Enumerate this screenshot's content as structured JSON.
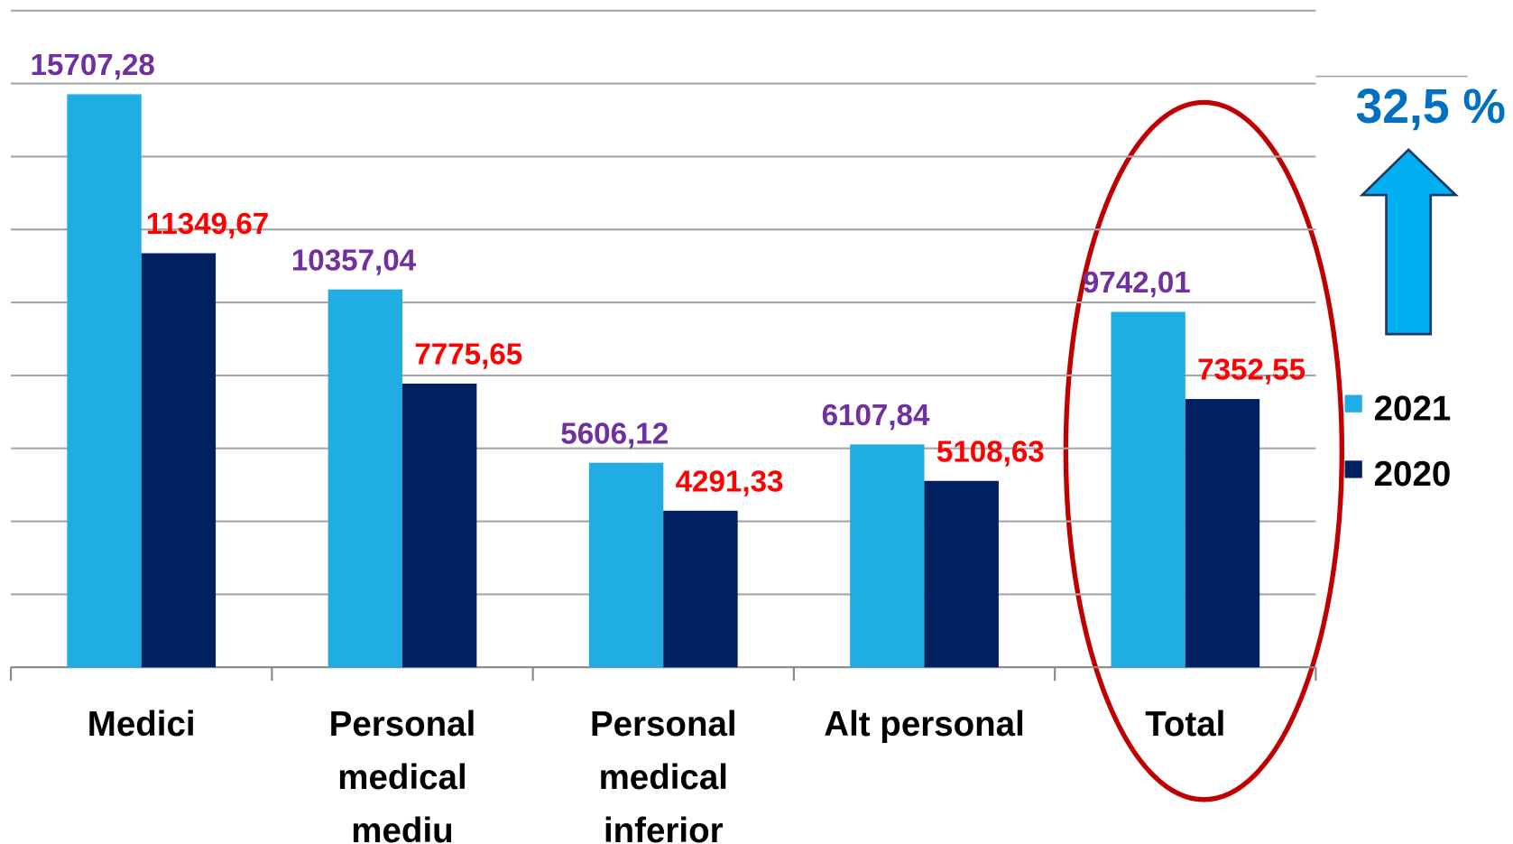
{
  "chart_data": {
    "type": "bar",
    "categories": [
      [
        "Medici"
      ],
      [
        "Personal",
        "medical",
        "mediu"
      ],
      [
        "Personal",
        "medical",
        "inferior"
      ],
      [
        "Alt personal"
      ],
      [
        "Total"
      ]
    ],
    "series": [
      {
        "name": "2021",
        "color": "#1fade3",
        "label_color": "#7030a0",
        "values": [
          15707.28,
          10357.04,
          5606.12,
          6107.84,
          9742.01
        ],
        "value_labels": [
          "15707,28",
          "10357,04",
          "5606,12",
          "6107,84",
          "9742,01"
        ]
      },
      {
        "name": "2020",
        "color": "#002060",
        "label_color": "#ff0000",
        "values": [
          11349.67,
          7775.65,
          4291.33,
          5108.63,
          7352.55
        ],
        "value_labels": [
          "11349,67",
          "7775,65",
          "4291,33",
          "5108,63",
          "7352,55"
        ]
      }
    ],
    "ylim": [
      0,
      18000
    ],
    "yticks": [
      0,
      2000,
      4000,
      6000,
      8000,
      10000,
      12000,
      14000,
      16000,
      18000
    ],
    "grid": true,
    "legend": "right",
    "annotation": "32,5 %"
  }
}
